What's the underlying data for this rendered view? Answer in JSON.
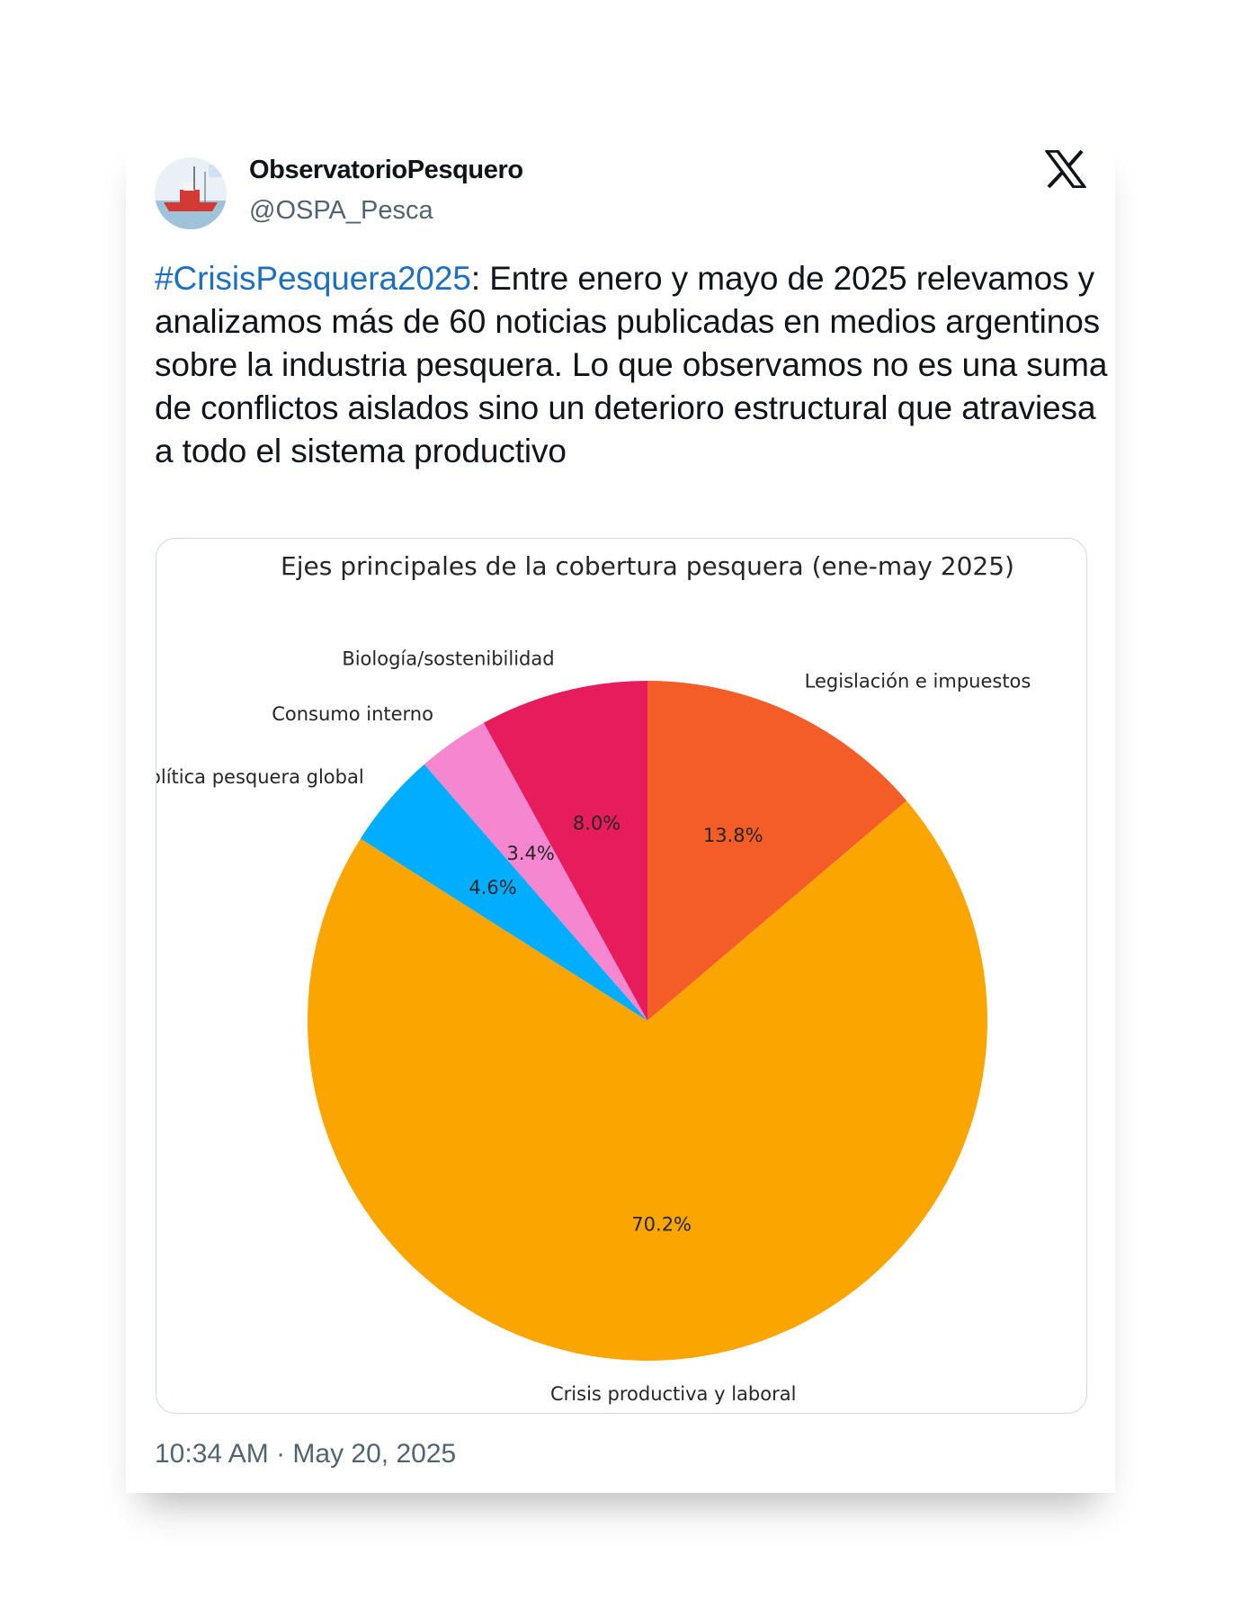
{
  "tweet": {
    "display_name": "ObservatorioPesquero",
    "handle": "@OSPA_Pesca",
    "hashtag": "#CrisisPesquera2025",
    "body": ": Entre enero y mayo de 2025 relevamos y analizamos más de 60 noticias publicadas en medios argentinos sobre la industria pesquera. Lo que observamos no es una suma de conflictos aislados sino un deterioro estructural que atraviesa a todo el sistema productivo",
    "timestamp": "10:34 AM · May 20, 2025",
    "avatar_icon": "fishing-boat-avatar",
    "brand_icon": "x-logo-icon"
  },
  "chart_data": {
    "type": "pie",
    "title": "Ejes principales de la cobertura pesquera (ene-may 2025)",
    "start_angle_deg": 90,
    "direction": "clockwise",
    "slices": [
      {
        "label": "Legislación e impuestos",
        "value": 13.8,
        "pct_label": "13.8%",
        "color": "#f45d27"
      },
      {
        "label": "Crisis productiva y laboral",
        "value": 70.2,
        "pct_label": "70.2%",
        "color": "#fba500"
      },
      {
        "label": "Política pesquera global",
        "value": 4.6,
        "pct_label": "4.6%",
        "color": "#00adff"
      },
      {
        "label": "Consumo interno",
        "value": 3.4,
        "pct_label": "3.4%",
        "color": "#f587d0"
      },
      {
        "label": "Biología/sostenibilidad",
        "value": 8.0,
        "pct_label": "8.0%",
        "color": "#e61c5d"
      }
    ]
  }
}
